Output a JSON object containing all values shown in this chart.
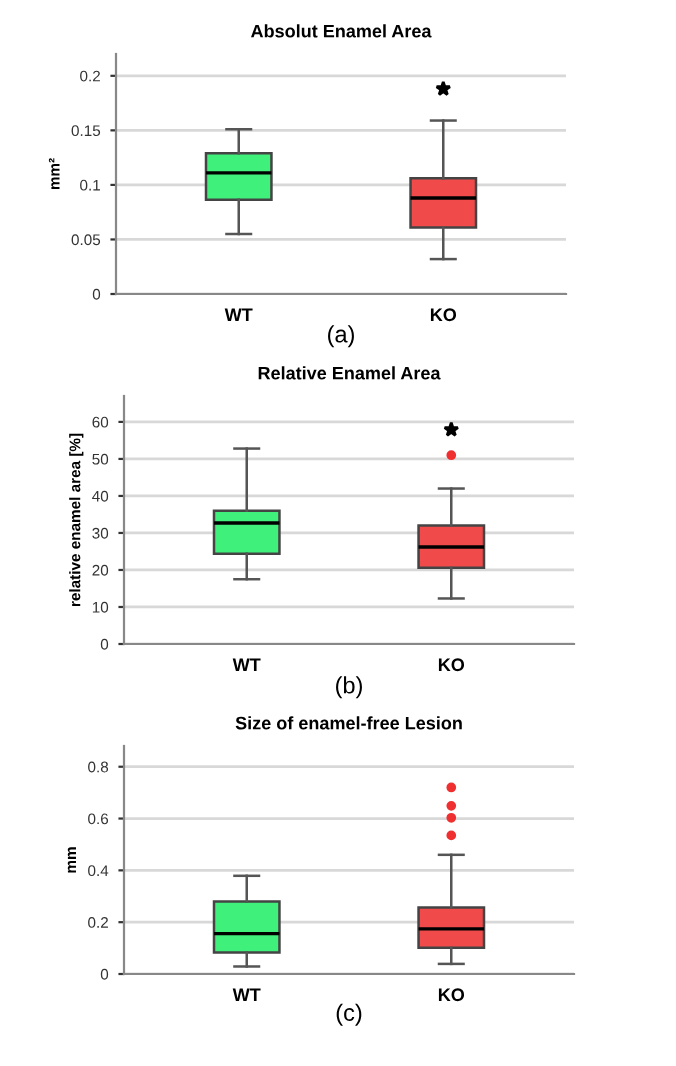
{
  "chart_data": [
    {
      "type": "box",
      "title": "Absolut Enamel Area",
      "ylabel": "mm²",
      "categories": [
        "WT",
        "KO"
      ],
      "colors": [
        "#3ff07a",
        "#f04a4a"
      ],
      "ylim": [
        0,
        0.22
      ],
      "yticks": [
        0,
        0.05,
        0.1,
        0.15,
        0.2
      ],
      "grid": "y",
      "annotations": [
        "(a)"
      ],
      "boxes": [
        {
          "low": 0.055,
          "q1": 0.0865,
          "median": 0.111,
          "q3": 0.129,
          "high": 0.151
        },
        {
          "low": 0.032,
          "q1": 0.061,
          "median": 0.088,
          "q3": 0.106,
          "high": 0.159
        }
      ],
      "series": [
        {
          "type": "scatter",
          "x": [
            "KO"
          ],
          "values": [
            0.188
          ],
          "color": "#000000",
          "marker": "star"
        }
      ]
    },
    {
      "type": "box",
      "title": "Relative Enamel Area",
      "ylabel": "relative enamel area [%]",
      "categories": [
        "WT",
        "KO"
      ],
      "colors": [
        "#3ff07a",
        "#f04a4a"
      ],
      "ylim": [
        0,
        67
      ],
      "yticks": [
        0,
        10,
        20,
        30,
        40,
        50,
        60
      ],
      "grid": "y",
      "annotations": [
        "(b)"
      ],
      "boxes": [
        {
          "low": 17.5,
          "q1": 24.4,
          "median": 32.7,
          "q3": 36,
          "high": 52.8
        },
        {
          "low": 12.3,
          "q1": 20.6,
          "median": 26.2,
          "q3": 32,
          "high": 42,
          "outliers": [
            51
          ]
        }
      ],
      "series": [
        {
          "type": "scatter",
          "x": [
            "KO"
          ],
          "values": [
            57.9
          ],
          "color": "#000000",
          "marker": "star"
        }
      ]
    },
    {
      "type": "box",
      "title": "Size of enamel-free Lesion",
      "ylabel": "mm",
      "categories": [
        "WT",
        "KO"
      ],
      "colors": [
        "#3ff07a",
        "#f04a4a"
      ],
      "ylim": [
        0,
        0.88
      ],
      "yticks": [
        0,
        0.2,
        0.4,
        0.6,
        0.8
      ],
      "grid": "y",
      "annotations": [
        "(c)"
      ],
      "boxes": [
        {
          "low": 0.029,
          "q1": 0.083,
          "median": 0.156,
          "q3": 0.28,
          "high": 0.379
        },
        {
          "low": 0.039,
          "q1": 0.101,
          "median": 0.174,
          "q3": 0.257,
          "high": 0.46,
          "outliers": [
            0.535,
            0.603,
            0.649,
            0.72
          ]
        }
      ]
    }
  ]
}
